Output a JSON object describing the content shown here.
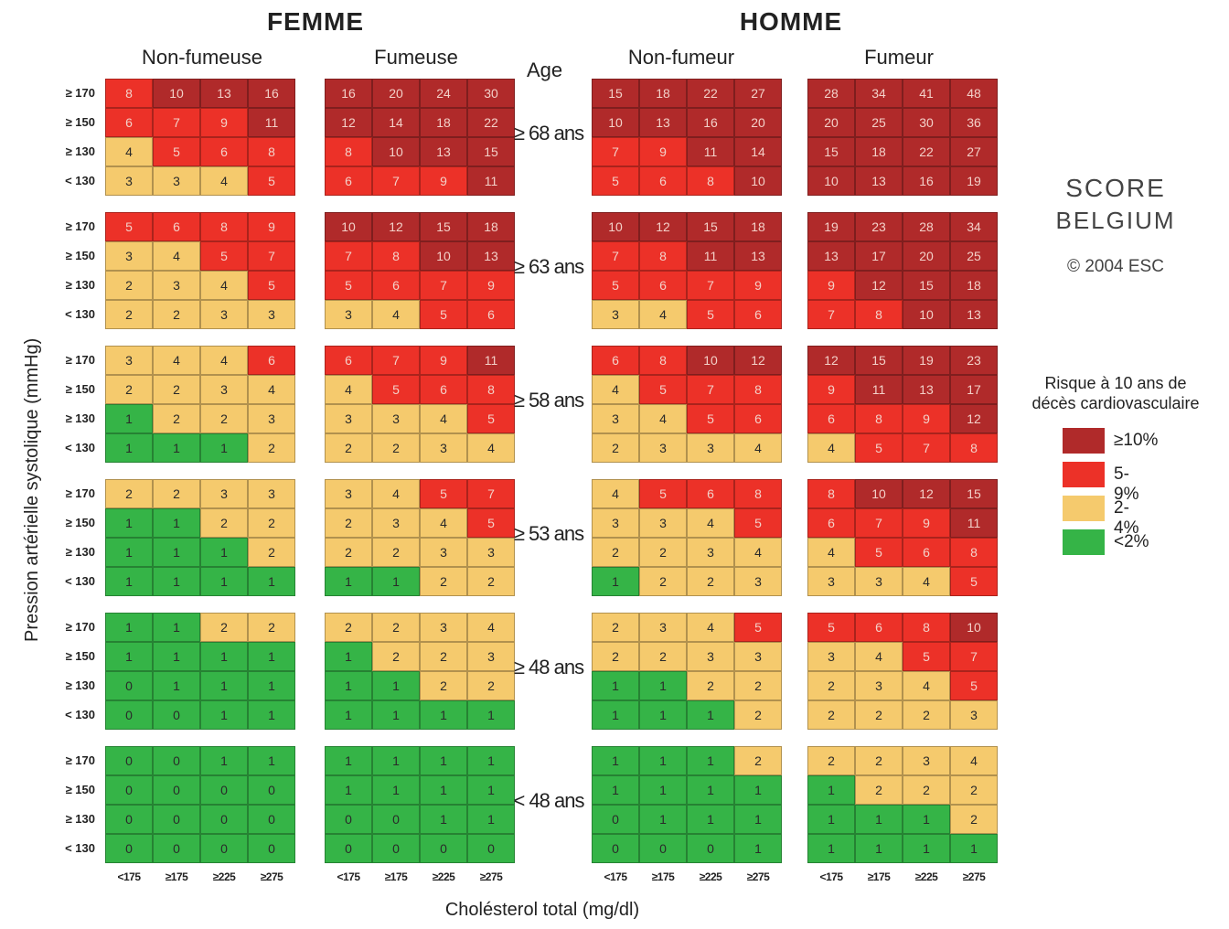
{
  "chart_data": {
    "type": "heatmap",
    "sexes": [
      {
        "label": "FEMME",
        "groups": [
          {
            "label": "Non-fumeuse",
            "grids": [
              [
                [
                  8,
                  10,
                  13,
                  16
                ],
                [
                  6,
                  7,
                  9,
                  11
                ],
                [
                  4,
                  5,
                  6,
                  8
                ],
                [
                  3,
                  3,
                  4,
                  5
                ]
              ],
              [
                [
                  5,
                  6,
                  8,
                  9
                ],
                [
                  3,
                  4,
                  5,
                  7
                ],
                [
                  2,
                  3,
                  4,
                  5
                ],
                [
                  2,
                  2,
                  3,
                  3
                ]
              ],
              [
                [
                  3,
                  4,
                  4,
                  6
                ],
                [
                  2,
                  2,
                  3,
                  4
                ],
                [
                  1,
                  2,
                  2,
                  3
                ],
                [
                  1,
                  1,
                  1,
                  2
                ]
              ],
              [
                [
                  2,
                  2,
                  3,
                  3
                ],
                [
                  1,
                  1,
                  2,
                  2
                ],
                [
                  1,
                  1,
                  1,
                  2
                ],
                [
                  1,
                  1,
                  1,
                  1
                ]
              ],
              [
                [
                  1,
                  1,
                  2,
                  2
                ],
                [
                  1,
                  1,
                  1,
                  1
                ],
                [
                  0,
                  1,
                  1,
                  1
                ],
                [
                  0,
                  0,
                  1,
                  1
                ]
              ],
              [
                [
                  0,
                  0,
                  1,
                  1
                ],
                [
                  0,
                  0,
                  0,
                  0
                ],
                [
                  0,
                  0,
                  0,
                  0
                ],
                [
                  0,
                  0,
                  0,
                  0
                ]
              ]
            ]
          },
          {
            "label": "Fumeuse",
            "grids": [
              [
                [
                  16,
                  20,
                  24,
                  30
                ],
                [
                  12,
                  14,
                  18,
                  22
                ],
                [
                  8,
                  10,
                  13,
                  15
                ],
                [
                  6,
                  7,
                  9,
                  11
                ]
              ],
              [
                [
                  10,
                  12,
                  15,
                  18
                ],
                [
                  7,
                  8,
                  10,
                  13
                ],
                [
                  5,
                  6,
                  7,
                  9
                ],
                [
                  3,
                  4,
                  5,
                  6
                ]
              ],
              [
                [
                  6,
                  7,
                  9,
                  11
                ],
                [
                  4,
                  5,
                  6,
                  8
                ],
                [
                  3,
                  3,
                  4,
                  5
                ],
                [
                  2,
                  2,
                  3,
                  4
                ]
              ],
              [
                [
                  3,
                  4,
                  5,
                  7
                ],
                [
                  2,
                  3,
                  4,
                  5
                ],
                [
                  2,
                  2,
                  3,
                  3
                ],
                [
                  1,
                  1,
                  2,
                  2
                ]
              ],
              [
                [
                  2,
                  2,
                  3,
                  4
                ],
                [
                  1,
                  2,
                  2,
                  3
                ],
                [
                  1,
                  1,
                  2,
                  2
                ],
                [
                  1,
                  1,
                  1,
                  1
                ]
              ],
              [
                [
                  1,
                  1,
                  1,
                  1
                ],
                [
                  1,
                  1,
                  1,
                  1
                ],
                [
                  0,
                  0,
                  1,
                  1
                ],
                [
                  0,
                  0,
                  0,
                  0
                ]
              ]
            ]
          }
        ]
      },
      {
        "label": "HOMME",
        "groups": [
          {
            "label": "Non-fumeur",
            "grids": [
              [
                [
                  15,
                  18,
                  22,
                  27
                ],
                [
                  10,
                  13,
                  16,
                  20
                ],
                [
                  7,
                  9,
                  11,
                  14
                ],
                [
                  5,
                  6,
                  8,
                  10
                ]
              ],
              [
                [
                  10,
                  12,
                  15,
                  18
                ],
                [
                  7,
                  8,
                  11,
                  13
                ],
                [
                  5,
                  6,
                  7,
                  9
                ],
                [
                  3,
                  4,
                  5,
                  6
                ]
              ],
              [
                [
                  6,
                  8,
                  10,
                  12
                ],
                [
                  4,
                  5,
                  7,
                  8
                ],
                [
                  3,
                  4,
                  5,
                  6
                ],
                [
                  2,
                  3,
                  3,
                  4
                ]
              ],
              [
                [
                  4,
                  5,
                  6,
                  8
                ],
                [
                  3,
                  3,
                  4,
                  5
                ],
                [
                  2,
                  2,
                  3,
                  4
                ],
                [
                  1,
                  2,
                  2,
                  3
                ]
              ],
              [
                [
                  2,
                  3,
                  4,
                  5
                ],
                [
                  2,
                  2,
                  3,
                  3
                ],
                [
                  1,
                  1,
                  2,
                  2
                ],
                [
                  1,
                  1,
                  1,
                  2
                ]
              ],
              [
                [
                  1,
                  1,
                  1,
                  2
                ],
                [
                  1,
                  1,
                  1,
                  1
                ],
                [
                  0,
                  1,
                  1,
                  1
                ],
                [
                  0,
                  0,
                  0,
                  1
                ]
              ]
            ]
          },
          {
            "label": "Fumeur",
            "grids": [
              [
                [
                  28,
                  34,
                  41,
                  48
                ],
                [
                  20,
                  25,
                  30,
                  36
                ],
                [
                  15,
                  18,
                  22,
                  27
                ],
                [
                  10,
                  13,
                  16,
                  19
                ]
              ],
              [
                [
                  19,
                  23,
                  28,
                  34
                ],
                [
                  13,
                  17,
                  20,
                  25
                ],
                [
                  9,
                  12,
                  15,
                  18
                ],
                [
                  7,
                  8,
                  10,
                  13
                ]
              ],
              [
                [
                  12,
                  15,
                  19,
                  23
                ],
                [
                  9,
                  11,
                  13,
                  17
                ],
                [
                  6,
                  8,
                  9,
                  12
                ],
                [
                  4,
                  5,
                  7,
                  8
                ]
              ],
              [
                [
                  8,
                  10,
                  12,
                  15
                ],
                [
                  6,
                  7,
                  9,
                  11
                ],
                [
                  4,
                  5,
                  6,
                  8
                ],
                [
                  3,
                  3,
                  4,
                  5
                ]
              ],
              [
                [
                  5,
                  6,
                  8,
                  10
                ],
                [
                  3,
                  4,
                  5,
                  7
                ],
                [
                  2,
                  3,
                  4,
                  5
                ],
                [
                  2,
                  2,
                  2,
                  3
                ]
              ],
              [
                [
                  2,
                  2,
                  3,
                  4
                ],
                [
                  1,
                  2,
                  2,
                  2
                ],
                [
                  1,
                  1,
                  1,
                  2
                ],
                [
                  1,
                  1,
                  1,
                  1
                ]
              ]
            ]
          }
        ]
      }
    ],
    "age_header": "Age",
    "age_labels": [
      "≥ 68 ans",
      "≥ 63 ans",
      "≥ 58 ans",
      "≥ 53 ans",
      "≥ 48 ans",
      "< 48 ans"
    ],
    "bp_labels": [
      "≥ 170",
      "≥ 150",
      "≥ 130",
      "< 130"
    ],
    "cholesterol_labels": [
      "<175",
      "≥175",
      "≥225",
      "≥275"
    ],
    "xlabel": "Cholésterol total (mg/dl)",
    "ylabel": "Pression artérielle systolique (mmHg)",
    "legend": {
      "title_line1": "Risque à 10 ans de",
      "title_line2": "décès cardiovasculaire",
      "entries": [
        {
          "label": "≥10%",
          "color": "#b02a2a"
        },
        {
          "label": "5-9%",
          "color": "#ec3128"
        },
        {
          "label": "2-4%",
          "color": "#f5ca6d"
        },
        {
          "label": "<2%",
          "color": "#35b447"
        }
      ]
    },
    "brand_line1": "SCORE",
    "brand_line2": "BELGIUM",
    "copyright": "© 2004 ESC",
    "colors": {
      "high": "#b02a2a",
      "medhigh": "#ec3128",
      "mid": "#f5ca6d",
      "low": "#35b447"
    }
  }
}
